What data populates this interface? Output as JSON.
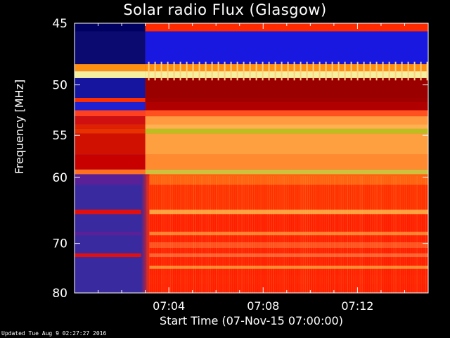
{
  "chart_data": {
    "type": "heatmap",
    "title": "Solar radio Flux (Glasgow)",
    "ylabel": "Frequency [MHz]",
    "xlabel": "Start Time (07-Nov-15 07:00:00)",
    "y_ticks": [
      "45",
      "50",
      "55",
      "60",
      "70",
      "80"
    ],
    "y_tick_values": [
      45,
      50,
      55,
      60,
      70,
      80
    ],
    "y_scale": "reciprocal",
    "ylim": [
      45,
      80
    ],
    "x_ticks": [
      "07:04",
      "07:08",
      "07:12"
    ],
    "x_tick_values_min": [
      4,
      8,
      12
    ],
    "xlim_min": [
      0,
      15
    ],
    "burst_onset_min": 3.0,
    "colormap": "blue-red-yellow",
    "colors": {
      "low": "#2c2ca0",
      "mid": "#ff2a00",
      "high": "#ffb040"
    }
  },
  "footer": {
    "updated": "Updated Tue Aug  9 02:27:27 2016"
  }
}
